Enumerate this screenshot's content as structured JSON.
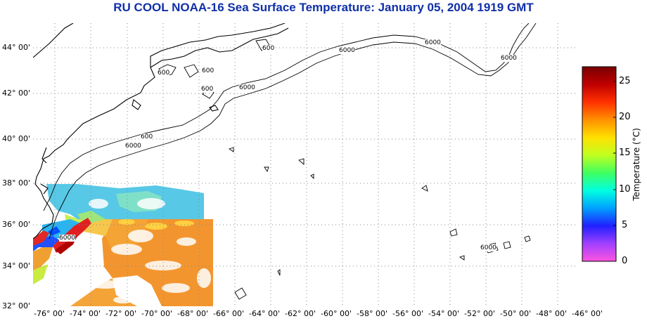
{
  "title": "RU COOL  NOAA-16  Sea Surface Temperature:  January 05, 2004 1919 GMT",
  "map": {
    "lat_labels": [
      "44° 00'",
      "42° 00'",
      "40° 00'",
      "38° 00'",
      "36° 00'",
      "34° 00'",
      "32° 00'"
    ],
    "lon_labels": [
      "-76° 00'",
      "-74° 00'",
      "-72° 00'",
      "-70° 00'",
      "-68° 00'",
      "-66° 00'",
      "-64° 00'",
      "-62° 00'",
      "-60° 00'",
      "-58° 00'",
      "-56° 00'",
      "-54° 00'",
      "-52° 00'",
      "-50° 00'",
      "-48° 00'",
      "-46° 00'"
    ],
    "contour_labels": [
      "600",
      "600",
      "600",
      "600",
      "600",
      "6000",
      "6000",
      "6000",
      "6000",
      "6000",
      "6000",
      "6000"
    ],
    "land_color": "#ffffff",
    "grid_style": "dotted"
  },
  "colorbar": {
    "title": "Temperature (°C)",
    "ticks": [
      "25",
      "20",
      "15",
      "10",
      "5",
      "0"
    ],
    "range": [
      0,
      27
    ],
    "colors": [
      "#ff55e0",
      "#a040ff",
      "#2020ff",
      "#00a0ff",
      "#00ffe0",
      "#40ff60",
      "#c0ff20",
      "#ffe000",
      "#ff9000",
      "#ff3000",
      "#c00000",
      "#780000"
    ]
  }
}
